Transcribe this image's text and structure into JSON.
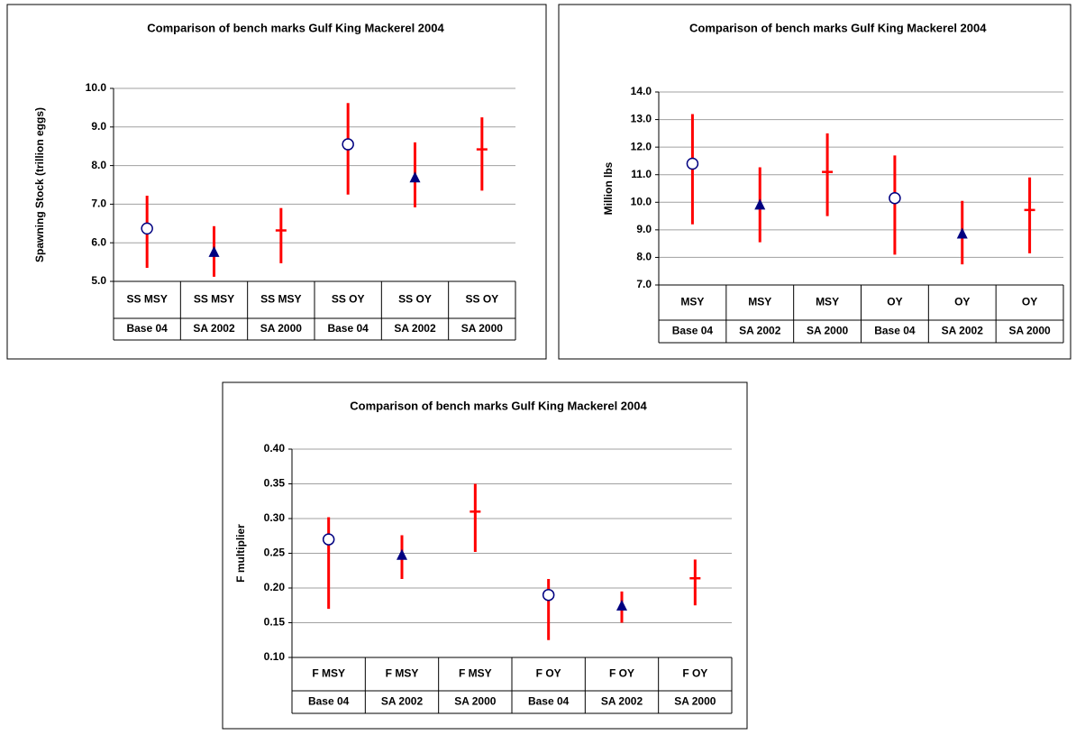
{
  "chart_data": [
    {
      "type": "errorbar",
      "title": "Comparison of bench marks Gulf King Mackerel 2004",
      "y_label": "Spawning Stock (trillion eggs)",
      "categories": [
        "SS MSY",
        "SS MSY",
        "SS MSY",
        "SS OY",
        "SS OY",
        "SS OY"
      ],
      "subcategories": [
        "Base 04",
        "SA 2002",
        "SA 2000",
        "Base 04",
        "SA 2002",
        "SA 2000"
      ],
      "values": [
        6.37,
        5.75,
        6.32,
        8.55,
        7.68,
        8.42
      ],
      "lows": [
        5.35,
        5.12,
        5.47,
        7.25,
        6.92,
        7.35
      ],
      "highs": [
        7.22,
        6.43,
        6.9,
        9.62,
        8.6,
        9.25
      ],
      "markers": [
        "circle",
        "triangle",
        "dash",
        "circle",
        "triangle",
        "dash"
      ],
      "marker_color": "#000080",
      "bar_color": "#ff0000",
      "ylim": [
        5,
        10
      ],
      "yticks": [
        {
          "value": 5,
          "label": "5.0"
        },
        {
          "value": 6,
          "label": "6.0"
        },
        {
          "value": 7,
          "label": "7.0"
        },
        {
          "value": 8,
          "label": "8.0"
        },
        {
          "value": 9,
          "label": "9.0"
        },
        {
          "value": 10,
          "label": "10.0"
        }
      ],
      "grid": true
    },
    {
      "type": "errorbar",
      "title": "Comparison of bench marks Gulf King Mackerel 2004",
      "y_label": "Million lbs",
      "categories": [
        "MSY",
        "MSY",
        "MSY",
        "OY",
        "OY",
        "OY"
      ],
      "subcategories": [
        "Base 04",
        "SA 2002",
        "SA 2000",
        "Base 04",
        "SA 2002",
        "SA 2000"
      ],
      "values": [
        11.4,
        9.9,
        11.1,
        10.15,
        8.85,
        9.72
      ],
      "lows": [
        9.2,
        8.55,
        9.5,
        8.1,
        7.75,
        8.15
      ],
      "highs": [
        13.2,
        11.27,
        12.5,
        11.7,
        10.05,
        10.9
      ],
      "markers": [
        "circle",
        "triangle",
        "dash",
        "circle",
        "triangle",
        "dash"
      ],
      "marker_color": "#000080",
      "bar_color": "#ff0000",
      "ylim": [
        7,
        14
      ],
      "yticks": [
        {
          "value": 7,
          "label": "7.0"
        },
        {
          "value": 8,
          "label": "8.0"
        },
        {
          "value": 9,
          "label": "9.0"
        },
        {
          "value": 10,
          "label": "10.0"
        },
        {
          "value": 11,
          "label": "11.0"
        },
        {
          "value": 12,
          "label": "12.0"
        },
        {
          "value": 13,
          "label": "13.0"
        },
        {
          "value": 14,
          "label": "14.0"
        }
      ],
      "grid": true
    },
    {
      "type": "errorbar",
      "title": "Comparison of bench marks Gulf King Mackerel 2004",
      "y_label": "F multiplier",
      "categories": [
        "F MSY",
        "F MSY",
        "F MSY",
        "F OY",
        "F OY",
        "F OY"
      ],
      "subcategories": [
        "Base 04",
        "SA 2002",
        "SA 2000",
        "Base 04",
        "SA 2002",
        "SA 2000"
      ],
      "values": [
        0.27,
        0.247,
        0.31,
        0.19,
        0.174,
        0.214
      ],
      "lows": [
        0.17,
        0.213,
        0.252,
        0.125,
        0.15,
        0.175
      ],
      "highs": [
        0.302,
        0.276,
        0.35,
        0.213,
        0.195,
        0.241
      ],
      "markers": [
        "circle",
        "triangle",
        "dash",
        "circle",
        "triangle",
        "dash"
      ],
      "marker_color": "#000080",
      "bar_color": "#ff0000",
      "ylim": [
        0.1,
        0.4
      ],
      "yticks": [
        {
          "value": 0.1,
          "label": "0.10"
        },
        {
          "value": 0.15,
          "label": "0.15"
        },
        {
          "value": 0.2,
          "label": "0.20"
        },
        {
          "value": 0.25,
          "label": "0.25"
        },
        {
          "value": 0.3,
          "label": "0.30"
        },
        {
          "value": 0.35,
          "label": "0.35"
        },
        {
          "value": 0.4,
          "label": "0.40"
        }
      ],
      "grid": true
    }
  ]
}
